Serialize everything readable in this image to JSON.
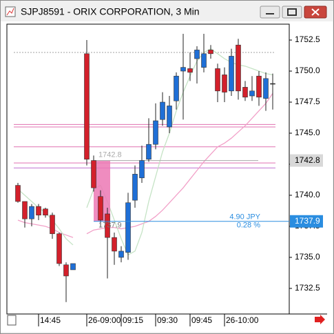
{
  "window_title": "SJPJ8591 - ORIX CORPORATION, 3 Min",
  "chart_data": {
    "type": "candlestick",
    "categories": [
      null,
      null,
      null,
      "14:45",
      null,
      null,
      null,
      null,
      null,
      null,
      "26-09:00",
      null,
      null,
      null,
      null,
      "09:15",
      null,
      null,
      null,
      null,
      "09:30",
      null,
      null,
      null,
      null,
      "09:45",
      null,
      null,
      null,
      null,
      "26-10:00",
      null,
      null,
      null,
      null,
      null,
      null,
      null
    ],
    "candles": {
      "up_color": "#1f6fd6",
      "down_color": "#d3202b",
      "open": [
        1740.8,
        1739.5,
        1738.1,
        1739.1,
        1738.9,
        1738.4,
        1736.9,
        1734.4,
        1734.0,
        null,
        1751.4,
        1742.8,
        1739.9,
        1738.5,
        1736.6,
        1735.0,
        1735.4,
        1739.6,
        1741.4,
        1742.9,
        1744.1,
        1746.1,
        1745.5,
        1747.6,
        1750.0,
        1750.2,
        1751.0,
        1750.3,
        1751.7,
        1750.2,
        1749.7,
        1748.4,
        1752.1,
        1748.7,
        1748.0,
        1749.6,
        1747.8,
        1749.0
      ],
      "high": [
        1741.0,
        1739.5,
        1739.3,
        1739.3,
        1739.0,
        1738.6,
        1737.0,
        1734.6,
        1734.5,
        null,
        1752.5,
        1743.2,
        1740.4,
        1739.0,
        1737.0,
        1735.9,
        1740.2,
        1742.4,
        1744.0,
        1746.2,
        1747.4,
        1748.3,
        1748.0,
        1749.9,
        1753.0,
        1751.5,
        1752.0,
        1753.0,
        1752.1,
        1750.6,
        1750.3,
        1751.8,
        1752.6,
        1749.2,
        1749.6,
        1750.0,
        1749.9,
        1749.8
      ],
      "low": [
        1739.4,
        1737.4,
        1737.5,
        1738.0,
        1738.2,
        1736.5,
        1734.3,
        1731.4,
        1734.0,
        null,
        1742.4,
        1740.3,
        1737.4,
        1733.3,
        1734.4,
        1734.6,
        1734.8,
        1739.0,
        1741.0,
        1742.7,
        1743.7,
        1745.6,
        1745.0,
        1746.9,
        1746.1,
        1749.2,
        1749.0,
        1749.9,
        1751.0,
        1747.5,
        1747.5,
        1748.0,
        1747.7,
        1747.6,
        1747.6,
        1747.2,
        1746.8,
        1746.9
      ],
      "close": [
        1739.5,
        1738.1,
        1739.1,
        1738.4,
        1738.4,
        1736.9,
        1734.5,
        1733.5,
        1734.5,
        null,
        1742.9,
        1740.6,
        1738.0,
        1736.6,
        1735.5,
        1735.5,
        1739.4,
        1741.7,
        1742.8,
        1744.1,
        1746.0,
        1747.5,
        1747.2,
        1749.6,
        1750.3,
        1749.9,
        1751.7,
        1751.4,
        1751.4,
        1748.4,
        1748.3,
        1751.2,
        1748.4,
        1747.9,
        1748.4,
        1747.9,
        1749.4,
        1749.0
      ]
    },
    "series": [
      {
        "color": "#f2a0c8",
        "values": [
          1738.0,
          1737.8,
          1737.7,
          1737.6,
          1737.5,
          1737.3,
          1737.0,
          1736.8,
          1736.6,
          null,
          1736.9,
          1737.2,
          1737.3,
          1737.4,
          1737.4,
          1737.3,
          1737.4,
          1737.5,
          1737.7,
          1737.9,
          1738.3,
          1738.8,
          1739.4,
          1740.0,
          1740.6,
          1741.3,
          1742.0,
          1742.7,
          1743.3,
          1743.9,
          1744.2,
          1744.6,
          1745.1,
          1745.6,
          1746.2,
          1746.8,
          1747.4,
          1748.2
        ]
      },
      {
        "color": "#c5e3c5",
        "values": [
          1740.5,
          1740.0,
          1739.5,
          1739.0,
          1738.6,
          1738.0,
          1737.3,
          1736.5,
          1736.0,
          null,
          1739.0,
          1740.5,
          1740.8,
          1739.5,
          1738.0,
          1736.5,
          1735.2,
          1735.5,
          1737.0,
          1739.5,
          1741.5,
          1743.5,
          1745.0,
          1746.8,
          1748.3,
          1749.6,
          1750.8,
          1751.5,
          1751.8,
          1751.4,
          1751.0,
          1750.7,
          1750.5,
          1750.4,
          1750.2,
          1750.0,
          1749.8,
          1749.7
        ]
      }
    ],
    "levels": [
      {
        "value": 1751.5,
        "color": "#a0a0a0"
      },
      {
        "value": 1745.7,
        "color": "#e070b0"
      },
      {
        "value": 1745.5,
        "color": "#e070b0"
      },
      {
        "value": 1743.9,
        "color": "#e070b0"
      },
      {
        "value": 1742.6,
        "color": "#e070b0"
      },
      {
        "value": 1742.2,
        "color": "#c070d0"
      }
    ],
    "price_marker": {
      "value": 1742.8,
      "color": "#a8a8a8"
    },
    "measure": {
      "from": 1742.8,
      "to": 1737.9,
      "change": "4.90 JPY",
      "percent": "0.28 %",
      "color": "#2a8de0",
      "fill": "#ec78b4"
    },
    "ylim": [
      1730.44,
      1753.78
    ],
    "yticks": [
      1732.5,
      {
        "value": 1735,
        "label": "1735.0"
      },
      1737.5,
      {
        "value": 1740,
        "label": "1740.0"
      },
      1742.5,
      {
        "value": 1745,
        "label": "1745.0"
      },
      1747.5,
      {
        "value": 1750,
        "label": "1750.0"
      },
      1752.5
    ]
  }
}
